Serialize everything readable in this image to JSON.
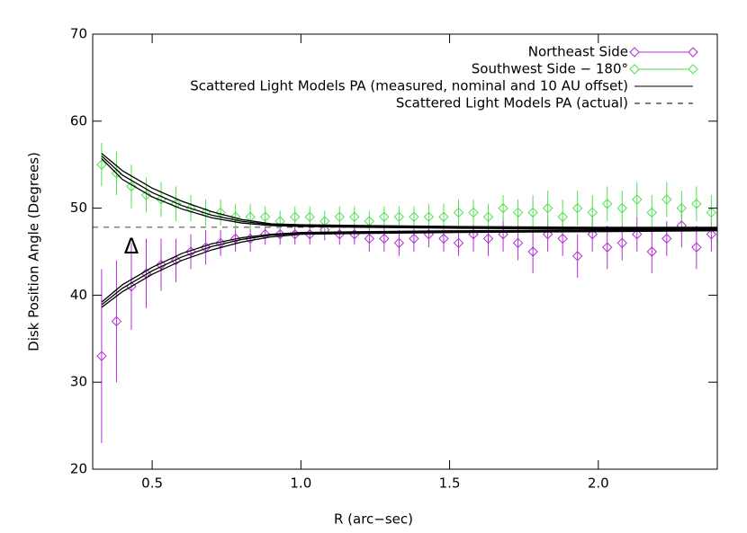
{
  "chart_data": {
    "type": "errorbar-scatter",
    "x_label": "R (arc−sec)",
    "y_label": "Disk Position Angle (Degrees)",
    "xlim": [
      0.3,
      2.4
    ],
    "ylim": [
      20,
      70
    ],
    "xticks": [
      0.5,
      {
        "value": 1,
        "label": "1.0"
      },
      1.5,
      {
        "value": 2,
        "label": "2.0"
      }
    ],
    "yticks": [
      20,
      30,
      40,
      50,
      60,
      70
    ],
    "x": [
      0.33,
      0.38,
      0.43,
      0.48,
      0.53,
      0.58,
      0.63,
      0.68,
      0.73,
      0.78,
      0.83,
      0.88,
      0.93,
      0.98,
      1.03,
      1.08,
      1.13,
      1.18,
      1.23,
      1.28,
      1.33,
      1.38,
      1.43,
      1.48,
      1.53,
      1.58,
      1.63,
      1.68,
      1.73,
      1.78,
      1.83,
      1.88,
      1.93,
      1.98,
      2.03,
      2.08,
      2.13,
      2.18,
      2.23,
      2.28,
      2.33,
      2.38
    ],
    "series": [
      {
        "name": "Northeast Side",
        "color": "#b030d0",
        "values": [
          33,
          37,
          41,
          42.5,
          43.5,
          44,
          45,
          45.5,
          46,
          46.5,
          46.5,
          47,
          47,
          47,
          47,
          47.5,
          47,
          47,
          46.5,
          46.5,
          46,
          46.5,
          47,
          46.5,
          46,
          47,
          46.5,
          47,
          46,
          45,
          47,
          46.5,
          44.5,
          47,
          45.5,
          46,
          47,
          45,
          46.5,
          48,
          45.5,
          47
        ],
        "errors": [
          10,
          7,
          5,
          4,
          3,
          2.5,
          2,
          2,
          1.5,
          1.5,
          1.5,
          1.2,
          1.2,
          1.2,
          1.2,
          1.2,
          1.2,
          1.2,
          1.5,
          1.5,
          1.5,
          1.5,
          1.5,
          1.5,
          1.5,
          2,
          2,
          2,
          2,
          2.5,
          2,
          2,
          2.5,
          2,
          2.5,
          2,
          2,
          2.5,
          2,
          2.5,
          2.5,
          2
        ]
      },
      {
        "name": "Southwest Side − 180°",
        "color": "#50e050",
        "values": [
          55,
          54,
          52.5,
          51.5,
          51,
          50.5,
          50,
          49.5,
          49.5,
          49,
          49,
          49,
          48.5,
          49,
          49,
          48.5,
          49,
          49,
          48.5,
          49,
          49,
          49,
          49,
          49,
          49.5,
          49.5,
          49,
          50,
          49.5,
          49.5,
          50,
          49,
          50,
          49.5,
          50.5,
          50,
          51,
          49.5,
          51,
          50,
          50.5,
          49.5
        ],
        "errors": [
          2.5,
          2.5,
          2.5,
          2,
          2,
          2,
          1.5,
          1.5,
          1.5,
          1.5,
          1.5,
          1.2,
          1.2,
          1.2,
          1.2,
          1.2,
          1.2,
          1.2,
          1.2,
          1.2,
          1.2,
          1.2,
          1.5,
          1.5,
          1.5,
          1.5,
          1.5,
          1.5,
          1.5,
          2,
          2,
          2,
          2,
          2,
          2,
          2,
          2,
          2,
          2,
          2,
          2,
          2
        ]
      }
    ],
    "models": {
      "name": "Scattered Light Models PA (measured, nominal and 10 AU offset)",
      "color": "#000000",
      "x": [
        0.33,
        0.4,
        0.5,
        0.6,
        0.7,
        0.8,
        0.9,
        1.0,
        1.2,
        1.5,
        2.0,
        2.4
      ],
      "curves": [
        [
          56.3,
          54.3,
          52.3,
          50.8,
          49.6,
          48.7,
          48.2,
          48.1,
          48.0,
          47.9,
          47.8,
          47.8
        ],
        [
          56.0,
          53.8,
          51.8,
          50.3,
          49.2,
          48.5,
          48.1,
          48.0,
          47.9,
          47.8,
          47.7,
          47.7
        ],
        [
          55.7,
          53.3,
          51.3,
          49.9,
          48.9,
          48.3,
          48.0,
          47.9,
          47.8,
          47.7,
          47.6,
          47.6
        ],
        [
          38.6,
          40.4,
          42.4,
          44.0,
          45.2,
          46.1,
          46.7,
          47.0,
          47.1,
          47.2,
          47.3,
          47.4
        ],
        [
          38.9,
          40.8,
          42.8,
          44.4,
          45.6,
          46.4,
          46.9,
          47.1,
          47.2,
          47.3,
          47.4,
          47.5
        ],
        [
          39.2,
          41.2,
          43.2,
          44.8,
          45.9,
          46.6,
          47.0,
          47.2,
          47.3,
          47.4,
          47.5,
          47.6
        ]
      ]
    },
    "actual": {
      "name": "Scattered Light Models PA (actual)",
      "value": 47.8,
      "color": "#000000"
    },
    "annotations": [
      {
        "text": "Δ",
        "x": 0.43,
        "y": 45.5
      }
    ]
  }
}
